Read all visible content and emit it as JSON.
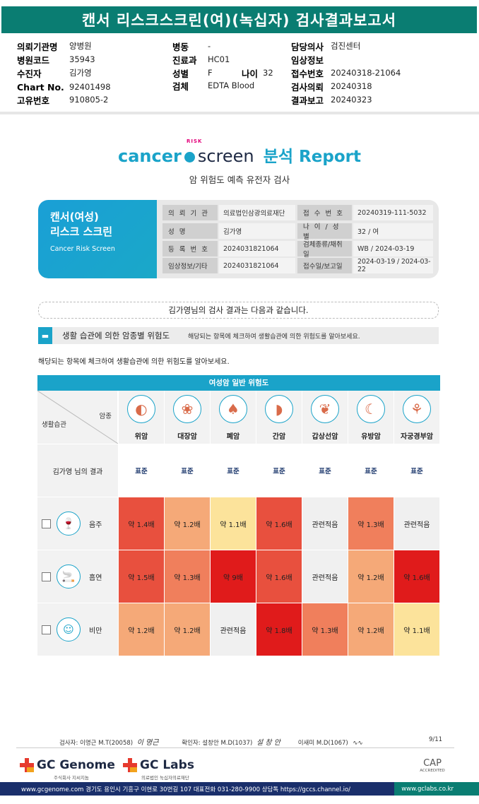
{
  "header": {
    "title": "캔서 리스크스크린(여)(녹십자) 검사결과보고서",
    "fields": [
      {
        "label": "의뢰기관명",
        "value": "양병원"
      },
      {
        "label": "병원코드",
        "value": "35943"
      },
      {
        "label": "수진자",
        "value": "김가영"
      },
      {
        "label": "Chart No.",
        "value": "92401498"
      },
      {
        "label": "고유번호",
        "value": "910805-2"
      },
      {
        "label": "병동",
        "value": "-"
      },
      {
        "label": "진료과",
        "value": "HC01"
      },
      {
        "label": "성별",
        "value": "F"
      },
      {
        "label": "나이",
        "value": "32"
      },
      {
        "label": "검체",
        "value": "EDTA Blood"
      },
      {
        "label": "담당의사",
        "value": "검진센터"
      },
      {
        "label": "임상정보",
        "value": ""
      },
      {
        "label": "접수번호",
        "value": "20240318-21064"
      },
      {
        "label": "검사의뢰",
        "value": "20240318"
      },
      {
        "label": "결과보고",
        "value": "20240323"
      }
    ]
  },
  "report_logo": {
    "cancer": "cancer",
    "risk": "RISK",
    "screen": "screen",
    "report": "분석 Report"
  },
  "subtitle": "암 위험도 예측 유전자 검사",
  "card": {
    "title_line1": "캔서(여성)",
    "title_line2": "리스크 스크린",
    "title_en": "Cancer Risk Screen",
    "rows": [
      {
        "l1": "의 뢰 기 관",
        "v1": "의료법인삼광의료재단",
        "l2": "접 수 번 호",
        "v2": "20240319-111-5032"
      },
      {
        "l1": "성 명",
        "v1": "김가영",
        "l2": "나 이 / 성 별",
        "v2": "32 / 여"
      },
      {
        "l1": "등 록 번 호",
        "v1": "2024031821064",
        "l2": "검체종류/채취일",
        "v2": "WB / 2024-03-19"
      },
      {
        "l1": "임상정보/기타",
        "v1": "2024031821064",
        "l2": "접수일/보고일",
        "v2": "2024-03-19 / 2024-03-22"
      }
    ]
  },
  "result_statement": "김가영님의 검사 결과는 다음과 같습니다.",
  "section": {
    "title": "생활 습관에 의한 암종별 위험도",
    "note": "해당되는 항목에 체크하여 생활습관에 의한 위험도를 알아보세요."
  },
  "instruction": "해당되는 항목에 체크하여 생활습관에 의한 위험도를 알아보세요.",
  "table": {
    "head": "여성암 일반 위험도",
    "corner_cancer": "암종",
    "corner_habit": "생활습관",
    "cancers": [
      {
        "name": "위암",
        "icon": "stomach-icon",
        "glyph": "◐"
      },
      {
        "name": "대장암",
        "icon": "colon-icon",
        "glyph": "❀"
      },
      {
        "name": "폐암",
        "icon": "lung-icon",
        "glyph": "♠"
      },
      {
        "name": "간암",
        "icon": "liver-icon",
        "glyph": "◗"
      },
      {
        "name": "갑상선암",
        "icon": "thyroid-icon",
        "glyph": "❦"
      },
      {
        "name": "유방암",
        "icon": "breast-icon",
        "glyph": "☾"
      },
      {
        "name": "자궁경부암",
        "icon": "uterus-icon",
        "glyph": "⚘"
      }
    ],
    "result_label": "김가영 님의 결과",
    "results": [
      "표준",
      "표준",
      "표준",
      "표준",
      "표준",
      "표준",
      "표준"
    ],
    "habits": [
      {
        "name": "음주",
        "icon": "alcohol-icon",
        "glyph": "🍷",
        "checked": false,
        "cells": [
          {
            "text": "약 1.4배",
            "color": "#e8503e"
          },
          {
            "text": "약 1.2배",
            "color": "#f5a978"
          },
          {
            "text": "약 1.1배",
            "color": "#fce39b"
          },
          {
            "text": "약 1.6배",
            "color": "#e8503e"
          },
          {
            "text": "관련적음",
            "color": "#f0f0f0"
          },
          {
            "text": "약 1.3배",
            "color": "#f07f5c"
          },
          {
            "text": "관련적음",
            "color": "#f0f0f0"
          }
        ]
      },
      {
        "name": "흡연",
        "icon": "smoking-icon",
        "glyph": "🚬",
        "checked": false,
        "cells": [
          {
            "text": "약 1.5배",
            "color": "#e8503e"
          },
          {
            "text": "약 1.3배",
            "color": "#f07f5c"
          },
          {
            "text": "약 9배",
            "color": "#e01b1b"
          },
          {
            "text": "약 1.6배",
            "color": "#e8503e"
          },
          {
            "text": "관련적음",
            "color": "#f0f0f0"
          },
          {
            "text": "약 1.2배",
            "color": "#f5a978"
          },
          {
            "text": "약 1.6배",
            "color": "#e01b1b"
          }
        ]
      },
      {
        "name": "비만",
        "icon": "obesity-icon",
        "glyph": "☺",
        "checked": false,
        "cells": [
          {
            "text": "약 1.2배",
            "color": "#f5a978"
          },
          {
            "text": "약 1.2배",
            "color": "#f5a978"
          },
          {
            "text": "관련적음",
            "color": "#f0f0f0"
          },
          {
            "text": "약 1.8배",
            "color": "#e01b1b"
          },
          {
            "text": "약 1.3배",
            "color": "#f07f5c"
          },
          {
            "text": "약 1.2배",
            "color": "#f5a978"
          },
          {
            "text": "약 1.1배",
            "color": "#fce39b"
          }
        ]
      }
    ]
  },
  "footer": {
    "tester": "검사자: 이명근 M.T(20058)",
    "tester_sig": "이 명근",
    "confirmer": "확인자: 설창안 M.D(1037)",
    "confirmer_sig": "설 창 안",
    "confirmer2": "이새미 M.D(1067)",
    "page": "9/11",
    "gc_genome": "GC Genome",
    "gc_genome_sub": "주식회사 지씨지놈",
    "gc_labs": "GC Labs",
    "gc_labs_sub": "의료법인 녹십자의료재단",
    "cap": "CAP",
    "cap_sub": "ACCREDITED",
    "address": "www.gcgenome.com 경기도 용인시 기흥구 이현로 30번길 107 대표전화 031-280-9900 상담톡 https://gccs.channel.io/",
    "site2": "www.gclabs.co.kr"
  }
}
